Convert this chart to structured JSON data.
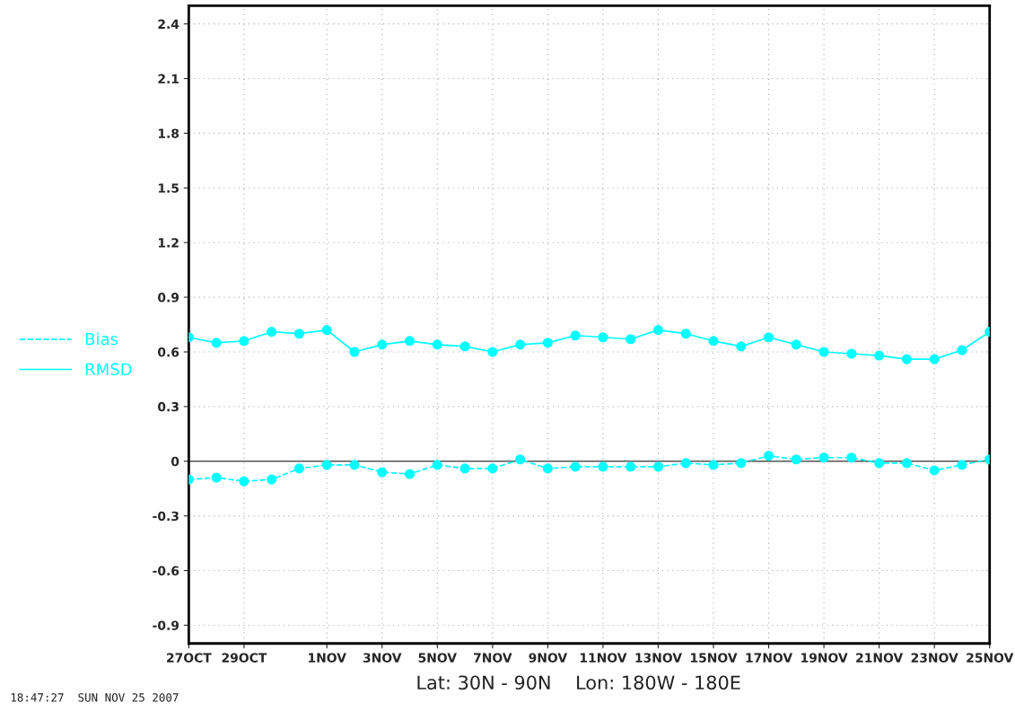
{
  "chart_data": {
    "type": "line",
    "x": [
      "2007-10-27",
      "2007-10-28",
      "2007-10-29",
      "2007-10-30",
      "2007-10-31",
      "2007-11-01",
      "2007-11-02",
      "2007-11-03",
      "2007-11-04",
      "2007-11-05",
      "2007-11-06",
      "2007-11-07",
      "2007-11-08",
      "2007-11-09",
      "2007-11-10",
      "2007-11-11",
      "2007-11-12",
      "2007-11-13",
      "2007-11-14",
      "2007-11-15",
      "2007-11-16",
      "2007-11-17",
      "2007-11-18",
      "2007-11-19",
      "2007-11-20",
      "2007-11-21",
      "2007-11-22",
      "2007-11-23",
      "2007-11-24",
      "2007-11-25"
    ],
    "series": [
      {
        "name": "Bias",
        "color": "#00ffff",
        "line_style": "dashed",
        "values": [
          -0.1,
          -0.09,
          -0.11,
          -0.1,
          -0.04,
          -0.02,
          -0.02,
          -0.06,
          -0.07,
          -0.02,
          -0.04,
          -0.04,
          0.01,
          -0.04,
          -0.03,
          -0.03,
          -0.03,
          -0.03,
          -0.01,
          -0.02,
          -0.01,
          0.03,
          0.01,
          0.02,
          0.02,
          -0.01,
          -0.01,
          -0.05,
          -0.02,
          0.01
        ]
      },
      {
        "name": "RMSD",
        "color": "#00ffff",
        "line_style": "solid",
        "values": [
          0.68,
          0.65,
          0.66,
          0.71,
          0.7,
          0.72,
          0.6,
          0.64,
          0.66,
          0.64,
          0.63,
          0.6,
          0.64,
          0.65,
          0.69,
          0.68,
          0.67,
          0.72,
          0.7,
          0.66,
          0.63,
          0.68,
          0.64,
          0.6,
          0.59,
          0.58,
          0.56,
          0.56,
          0.61,
          0.71
        ]
      }
    ],
    "marker": "circle",
    "xlim": [
      "2007-10-27",
      "2007-11-25"
    ],
    "xticks": [
      {
        "value": "2007-10-27",
        "label": "27OCT"
      },
      {
        "value": "2007-10-29",
        "label": "29OCT"
      },
      {
        "value": "2007-11-01",
        "label": "1NOV"
      },
      {
        "value": "2007-11-03",
        "label": "3NOV"
      },
      {
        "value": "2007-11-05",
        "label": "5NOV"
      },
      {
        "value": "2007-11-07",
        "label": "7NOV"
      },
      {
        "value": "2007-11-09",
        "label": "9NOV"
      },
      {
        "value": "2007-11-11",
        "label": "11NOV"
      },
      {
        "value": "2007-11-13",
        "label": "13NOV"
      },
      {
        "value": "2007-11-15",
        "label": "15NOV"
      },
      {
        "value": "2007-11-17",
        "label": "17NOV"
      },
      {
        "value": "2007-11-19",
        "label": "19NOV"
      },
      {
        "value": "2007-11-21",
        "label": "21NOV"
      },
      {
        "value": "2007-11-23",
        "label": "23NOV"
      },
      {
        "value": "2007-11-25",
        "label": "25NOV"
      }
    ],
    "ylim": [
      -1.0,
      2.5
    ],
    "yticks": [
      -0.9,
      -0.6,
      -0.3,
      0,
      0.3,
      0.6,
      0.9,
      1.2,
      1.5,
      1.8,
      2.1,
      2.4
    ],
    "grid": true,
    "legend": "left",
    "ref_lines": [
      {
        "axis": "y",
        "value": 0,
        "color": "#555555",
        "line_style": "solid"
      }
    ],
    "annotations": [
      "Lat: 30N - 90N    Lon: 180W - 180E",
      "18:47:27  SUN NOV 25 2007"
    ]
  }
}
